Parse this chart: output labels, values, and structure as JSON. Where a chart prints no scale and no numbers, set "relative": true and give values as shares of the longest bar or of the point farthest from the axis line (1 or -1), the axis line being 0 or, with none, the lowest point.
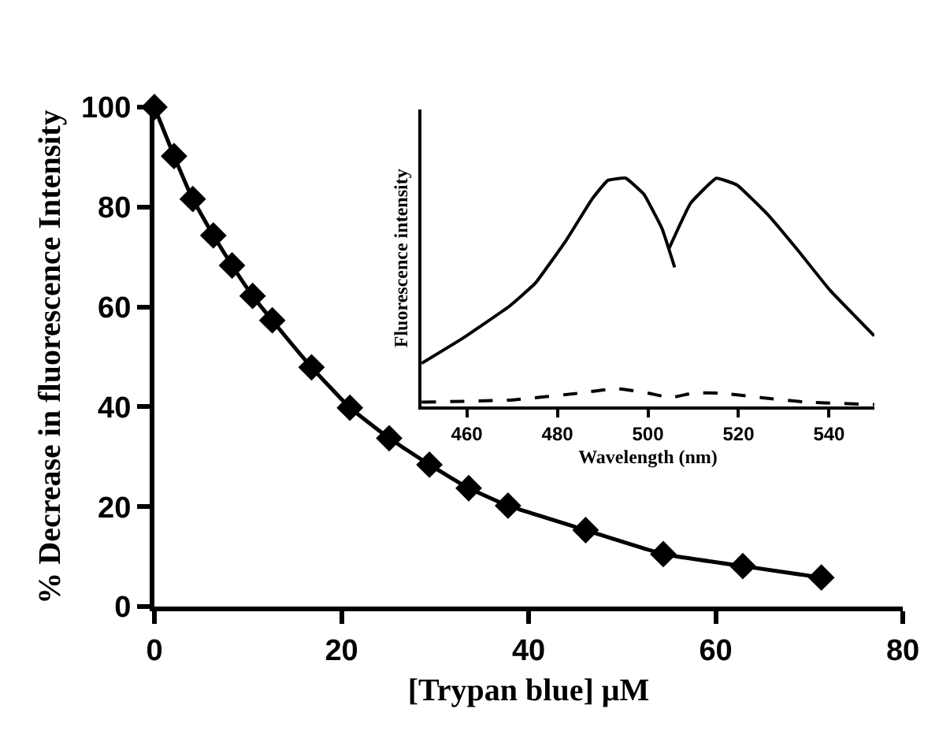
{
  "chart_data": [
    {
      "type": "line",
      "xlabel": "[Trypan blue] μM",
      "ylabel": "% Decrease in fluorescence Intensity",
      "xlim": [
        0,
        80
      ],
      "ylim": [
        0,
        100
      ],
      "xticks": [
        0,
        20,
        40,
        60,
        80
      ],
      "yticks": [
        0,
        20,
        40,
        60,
        80,
        100
      ],
      "marker": "diamond",
      "line_style": "solid",
      "x": [
        0,
        2.1,
        4.1,
        6.3,
        8.3,
        10.5,
        12.6,
        16.8,
        20.9,
        25.1,
        29.4,
        33.6,
        37.8,
        46.1,
        54.4,
        62.9,
        71.3
      ],
      "series": [
        {
          "color": "#000000",
          "values": [
            100,
            90.2,
            81.6,
            74.3,
            68.3,
            62.2,
            57.3,
            47.9,
            39.8,
            33.7,
            28.4,
            23.7,
            20.2,
            15.3,
            10.5,
            8.1,
            5.8
          ]
        }
      ]
    },
    {
      "type": "line",
      "xlabel": "Wavelength (nm)",
      "ylabel": "Fluorescence intensity",
      "xlim": [
        450,
        550
      ],
      "xticks": [
        460,
        480,
        500,
        520,
        540
      ],
      "relative": true,
      "marker": "none",
      "tick_labels": "x",
      "series": [
        {
          "color": "#000000",
          "line_style": "solid",
          "x": [
            450,
            459.1,
            469.4,
            475.1,
            482.0,
            487.7,
            491.1,
            495.1,
            499.1,
            503.1,
            505.9
          ],
          "values": [
            0.19,
            0.3,
            0.44,
            0.54,
            0.73,
            0.91,
            0.99,
            1.0,
            0.93,
            0.78,
            0.61
          ]
        },
        {
          "color": "#000000",
          "line_style": "solid",
          "x": [
            504.6,
            509.4,
            515.1,
            519.7,
            526.5,
            533.3,
            540.2,
            550
          ],
          "values": [
            0.69,
            0.89,
            1.0,
            0.97,
            0.84,
            0.68,
            0.51,
            0.31
          ]
        },
        {
          "color": "#000000",
          "line_style": "dashed",
          "x": [
            450,
            470,
            485,
            493,
            500,
            505,
            510,
            516,
            525,
            535,
            550
          ],
          "values": [
            0.02,
            0.03,
            0.06,
            0.08,
            0.06,
            0.04,
            0.06,
            0.06,
            0.04,
            0.02,
            0.01
          ]
        }
      ]
    }
  ]
}
